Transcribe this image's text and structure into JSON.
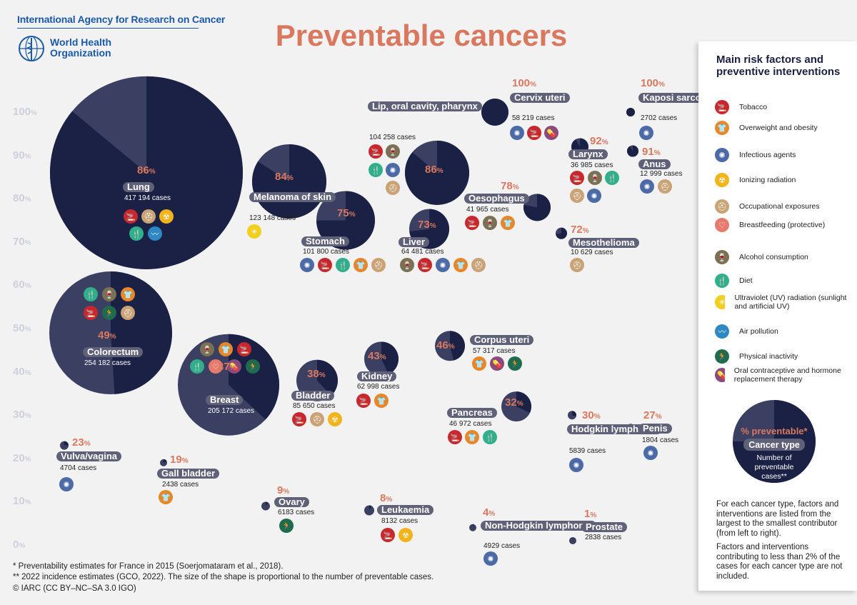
{
  "header": {
    "org": "International Agency for Research on Cancer",
    "who_line1": "World Health",
    "who_line2": "Organization",
    "title": "Preventable cancers"
  },
  "legend": {
    "title": "Main risk factors and preventive interventions",
    "items": [
      {
        "id": "tobacco",
        "label": "Tobacco",
        "color": "#c8282d",
        "icon": "cigarette-icon",
        "glyph": "🚬"
      },
      {
        "id": "overweight",
        "label": "Overweight and obesity",
        "color": "#e8862a",
        "icon": "shirt-icon",
        "glyph": "👕"
      },
      {
        "id": "infectious",
        "label": "Infectious agents",
        "color": "#4b6aa6",
        "icon": "virus-icon",
        "glyph": "✺"
      },
      {
        "id": "ionizing",
        "label": "Ionizing radiation",
        "color": "#f2b41c",
        "icon": "radiation-icon",
        "glyph": "☢"
      },
      {
        "id": "occupational",
        "label": "Occupational exposures",
        "color": "#c9a276",
        "icon": "hardhat-icon",
        "glyph": "⛑"
      },
      {
        "id": "breastfeeding",
        "label": "Breastfeeding (protective)",
        "color": "#e57a6d",
        "icon": "baby-bottle-icon",
        "glyph": "♡"
      },
      {
        "id": "alcohol",
        "label": "Alcohol consumption",
        "color": "#7b7051",
        "icon": "wine-glass-icon",
        "glyph": "🍷"
      },
      {
        "id": "diet",
        "label": "Diet",
        "color": "#2fb08a",
        "icon": "fork-knife-icon",
        "glyph": "🍴"
      },
      {
        "id": "uv",
        "label": "Ultraviolet (UV) radiation (sunlight and artificial UV)",
        "color": "#f2cf1f",
        "icon": "sun-icon",
        "glyph": "☀"
      },
      {
        "id": "air",
        "label": "Air pollution",
        "color": "#2d88c3",
        "icon": "wind-icon",
        "glyph": "〰"
      },
      {
        "id": "inactivity",
        "label": "Physical inactivity",
        "color": "#1f6b4d",
        "icon": "running-person-icon",
        "glyph": "🏃"
      },
      {
        "id": "hormone",
        "label": "Oral contraceptive and hormone replacement therapy",
        "color": "#8a4a7c",
        "icon": "pill-icon",
        "glyph": "💊"
      }
    ],
    "key_pct": "% preventable*",
    "key_type": "Cancer type",
    "key_cases": "Number of preventable cases**",
    "note1": "For each cancer type, factors and interventions are listed from the largest to the smallest contributor (from left to right).",
    "note2": "Factors and interventions contributing to less than 2% of the cases for each cancer type are not included."
  },
  "footnotes": {
    "f1": "* Preventability estimates for France in 2015 (Soerjomataram et al., 2018).",
    "f2": "** 2022 incidence estimates (GCO, 2022). The size of the shape is proportional to the number of preventable cases.",
    "f3": "© IARC (CC BY–NC–SA 3.0 IGO)"
  },
  "chart_data": {
    "type": "bubble",
    "title": "Preventable cancers",
    "y_axis": {
      "label": "% preventable",
      "min": 0,
      "max": 100,
      "ticks": [
        0,
        10,
        20,
        30,
        40,
        50,
        60,
        70,
        80,
        90,
        100
      ],
      "tick_suffix": "%"
    },
    "bubble_colors": {
      "preventable": "#1b2145",
      "non_preventable": "#3b3f62"
    },
    "cancers": [
      {
        "name": "Lung",
        "pct": 86,
        "pct_label": "86",
        "cases": "417 194 cases",
        "factors": [
          "tobacco",
          "occupational",
          "ionizing",
          "diet",
          "air"
        ]
      },
      {
        "name": "Melanoma of skin",
        "pct": 84,
        "pct_label": "84",
        "cases": "123 148 cases",
        "factors": [
          "uv"
        ]
      },
      {
        "name": "Stomach",
        "pct": 75,
        "pct_label": "75",
        "cases": "101 800 cases",
        "factors": [
          "infectious",
          "tobacco",
          "diet",
          "overweight",
          "occupational"
        ]
      },
      {
        "name": "Lip, oral cavity, pharynx",
        "pct": 86,
        "pct_label": "86",
        "cases": "104 258 cases",
        "factors": [
          "tobacco",
          "alcohol",
          "diet",
          "infectious",
          "occupational"
        ]
      },
      {
        "name": "Liver",
        "pct": 73,
        "pct_label": "73",
        "cases": "64 481 cases",
        "factors": [
          "alcohol",
          "tobacco",
          "infectious",
          "overweight",
          "occupational"
        ]
      },
      {
        "name": "Cervix uteri",
        "pct": 100,
        "pct_label": "100",
        "cases": "58 219 cases",
        "factors": [
          "infectious",
          "tobacco",
          "hormone"
        ]
      },
      {
        "name": "Oesophagus",
        "pct": 78,
        "pct_label": "78",
        "cases": "41 965 cases",
        "factors": [
          "tobacco",
          "alcohol",
          "overweight"
        ]
      },
      {
        "name": "Larynx",
        "pct": 92,
        "pct_label": "92",
        "cases": "36 985 cases",
        "factors": [
          "tobacco",
          "alcohol",
          "diet",
          "occupational",
          "infectious"
        ]
      },
      {
        "name": "Kaposi sarcoma",
        "pct": 100,
        "pct_label": "100",
        "cases": "2702 cases",
        "factors": [
          "infectious"
        ]
      },
      {
        "name": "Anus",
        "pct": 91,
        "pct_label": "91",
        "cases": "12 999 cases",
        "factors": [
          "infectious",
          "occupational"
        ]
      },
      {
        "name": "Mesothelioma",
        "pct": 72,
        "pct_label": "72",
        "cases": "10 629 cases",
        "factors": [
          "occupational"
        ]
      },
      {
        "name": "Colorectum",
        "pct": 49,
        "pct_label": "49",
        "cases": "254 182 cases",
        "factors": [
          "diet",
          "alcohol",
          "overweight",
          "tobacco",
          "inactivity",
          "occupational"
        ]
      },
      {
        "name": "Breast",
        "pct": 37,
        "pct_label": "37",
        "cases": "205 172 cases",
        "factors": [
          "alcohol",
          "overweight",
          "tobacco",
          "diet",
          "breastfeeding",
          "hormone",
          "inactivity"
        ]
      },
      {
        "name": "Bladder",
        "pct": 38,
        "pct_label": "38",
        "cases": "85 650 cases",
        "factors": [
          "tobacco",
          "occupational",
          "ionizing"
        ]
      },
      {
        "name": "Kidney",
        "pct": 43,
        "pct_label": "43",
        "cases": "62 998 cases",
        "factors": [
          "tobacco",
          "overweight"
        ]
      },
      {
        "name": "Corpus uteri",
        "pct": 46,
        "pct_label": "46",
        "cases": "57 317 cases",
        "factors": [
          "overweight",
          "hormone",
          "inactivity"
        ]
      },
      {
        "name": "Pancreas",
        "pct": 32,
        "pct_label": "32",
        "cases": "46 972 cases",
        "factors": [
          "tobacco",
          "overweight",
          "diet"
        ]
      },
      {
        "name": "Hodgkin lymphoma",
        "pct": 30,
        "pct_label": "30",
        "cases": "5839 cases",
        "factors": [
          "infectious"
        ]
      },
      {
        "name": "Penis",
        "pct": 27,
        "pct_label": "27",
        "cases": "1804 cases",
        "factors": [
          "infectious"
        ]
      },
      {
        "name": "Vulva/vagina",
        "pct": 23,
        "pct_label": "23",
        "cases": "4704 cases",
        "factors": [
          "infectious"
        ]
      },
      {
        "name": "Gall bladder",
        "pct": 19,
        "pct_label": "19",
        "cases": "2438 cases",
        "factors": [
          "overweight"
        ]
      },
      {
        "name": "Ovary",
        "pct": 9,
        "pct_label": "9",
        "cases": "6183 cases",
        "factors": [
          "inactivity"
        ]
      },
      {
        "name": "Leukaemia",
        "pct": 8,
        "pct_label": "8",
        "cases": "8132 cases",
        "factors": [
          "tobacco",
          "ionizing"
        ]
      },
      {
        "name": "Non-Hodgkin lymphoma",
        "pct": 4,
        "pct_label": "4",
        "cases": "4929 cases",
        "factors": [
          "infectious"
        ]
      },
      {
        "name": "Prostate",
        "pct": 1,
        "pct_label": "1",
        "cases": "2838 cases",
        "factors": []
      }
    ]
  }
}
